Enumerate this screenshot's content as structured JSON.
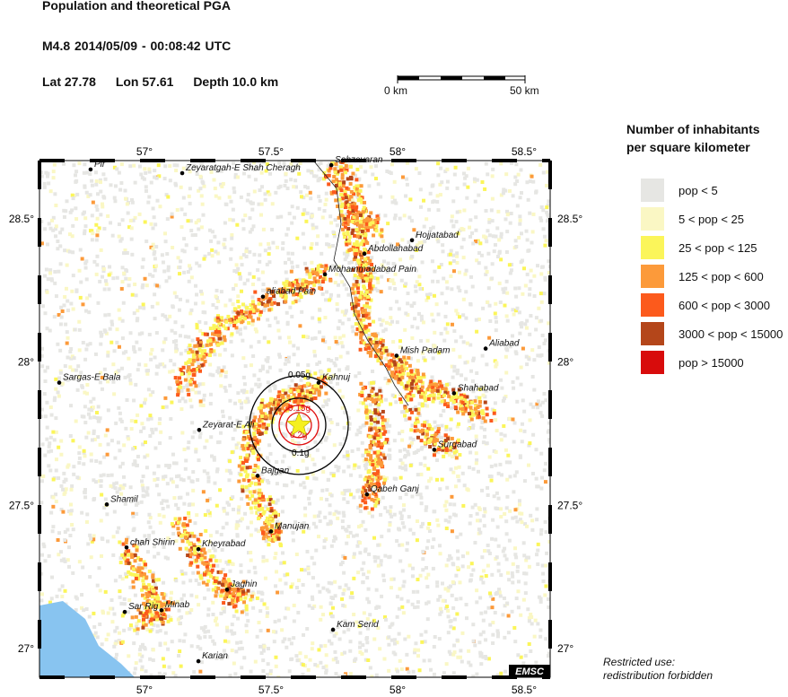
{
  "header": {
    "title": "Population and theoretical PGA",
    "event": "M4.8  2014/05/09 - 00:08:42 UTC",
    "lat": "Lat 27.78",
    "lon": "Lon  57.61",
    "depth": "Depth  10.0 km"
  },
  "scale_bar": {
    "start_label": "0 km",
    "end_label": "50 km"
  },
  "map": {
    "lon_range": [
      56.585,
      58.603
    ],
    "lat_range": [
      26.9,
      28.703
    ],
    "lon_ticks": [
      {
        "v": 57,
        "label": "57°"
      },
      {
        "v": 57.5,
        "label": "57.5°"
      },
      {
        "v": 58,
        "label": "58°"
      },
      {
        "v": 58.5,
        "label": "58.5°"
      }
    ],
    "lat_ticks": [
      {
        "v": 27,
        "label": "27°"
      },
      {
        "v": 27.5,
        "label": "27.5°"
      },
      {
        "v": 28,
        "label": "28°"
      },
      {
        "v": 28.5,
        "label": "28.5°"
      }
    ],
    "epicenter": {
      "lat": 27.78,
      "lon": 57.61
    },
    "pga_contours": [
      {
        "label": "0.05g",
        "color": "#000000"
      },
      {
        "label": "0.1g",
        "color": "#000000"
      },
      {
        "label": "0.15g",
        "color": "#e01010"
      },
      {
        "label": "0.2g",
        "color": "#e01010"
      }
    ],
    "sea_color": "#88c4f0",
    "cities": [
      {
        "name": "Pir",
        "lon": 56.787,
        "lat": 28.672
      },
      {
        "name": "Zeyaratgah-E Shah Cheragh",
        "lon": 57.149,
        "lat": 28.659
      },
      {
        "name": "Sabzevaran",
        "lon": 57.738,
        "lat": 28.687
      },
      {
        "name": "Hojjatabad",
        "lon": 58.057,
        "lat": 28.425
      },
      {
        "name": "Abdollahabad",
        "lon": 57.869,
        "lat": 28.378
      },
      {
        "name": "Mohammadabad Pain",
        "lon": 57.713,
        "lat": 28.306
      },
      {
        "name": "aliabad Pain",
        "lon": 57.468,
        "lat": 28.228
      },
      {
        "name": "Mish Padam",
        "lon": 57.996,
        "lat": 28.022
      },
      {
        "name": "Aliabad",
        "lon": 58.348,
        "lat": 28.047
      },
      {
        "name": "Kahnuj",
        "lon": 57.688,
        "lat": 27.928
      },
      {
        "name": "Sargas-E Bala",
        "lon": 56.663,
        "lat": 27.928
      },
      {
        "name": "Shahabad",
        "lon": 58.223,
        "lat": 27.891
      },
      {
        "name": "Zeyarat-E Ali",
        "lon": 57.216,
        "lat": 27.763
      },
      {
        "name": "Surgabad",
        "lon": 58.145,
        "lat": 27.694
      },
      {
        "name": "Bajgan",
        "lon": 57.447,
        "lat": 27.603
      },
      {
        "name": "Qabeh Ganj",
        "lon": 57.879,
        "lat": 27.538
      },
      {
        "name": "Shamil",
        "lon": 56.851,
        "lat": 27.503
      },
      {
        "name": "Manujan",
        "lon": 57.5,
        "lat": 27.409
      },
      {
        "name": "chah Shirin",
        "lon": 56.929,
        "lat": 27.353
      },
      {
        "name": "Kheyrabad",
        "lon": 57.213,
        "lat": 27.347
      },
      {
        "name": "Jaghin",
        "lon": 57.326,
        "lat": 27.206
      },
      {
        "name": "Minab",
        "lon": 57.067,
        "lat": 27.134
      },
      {
        "name": "Sar Rig",
        "lon": 56.922,
        "lat": 27.128
      },
      {
        "name": "Kam Serid",
        "lon": 57.745,
        "lat": 27.066
      },
      {
        "name": "Karian",
        "lon": 57.213,
        "lat": 26.956
      }
    ],
    "logo": "EMSC"
  },
  "legend": {
    "title_line1": "Number of inhabitants",
    "title_line2": "per square kilometer",
    "items": [
      {
        "label": "pop < 5",
        "color": "#e6e6e3"
      },
      {
        "label": "5 < pop < 25",
        "color": "#faf7c4"
      },
      {
        "label": "25 < pop < 125",
        "color": "#fbf55a"
      },
      {
        "label": "125 < pop < 600",
        "color": "#fc9a3a"
      },
      {
        "label": "600 < pop < 3000",
        "color": "#fc5a1c"
      },
      {
        "label": "3000 < pop < 15000",
        "color": "#b4461a"
      },
      {
        "label": "pop > 15000",
        "color": "#d80c0c"
      }
    ]
  },
  "footer": {
    "line1": "Restricted use:",
    "line2": "redistribution forbidden"
  }
}
